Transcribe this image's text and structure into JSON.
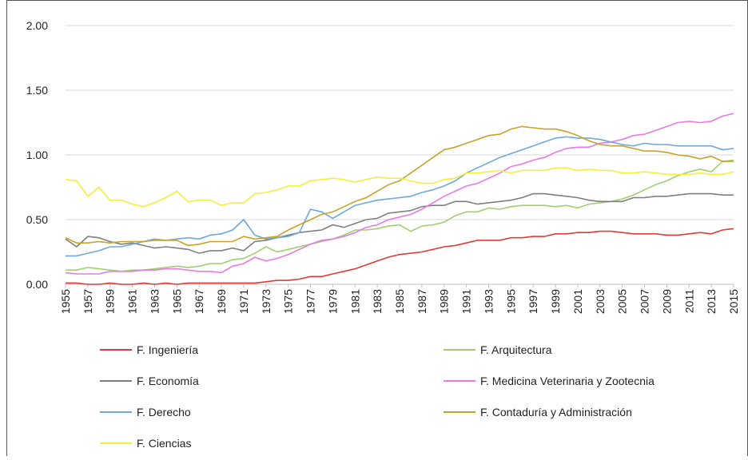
{
  "chart_data": {
    "type": "line",
    "x": [
      1955,
      1956,
      1957,
      1958,
      1959,
      1960,
      1961,
      1962,
      1963,
      1964,
      1965,
      1966,
      1967,
      1968,
      1969,
      1970,
      1971,
      1972,
      1973,
      1974,
      1975,
      1976,
      1977,
      1978,
      1979,
      1980,
      1981,
      1982,
      1983,
      1984,
      1985,
      1986,
      1987,
      1988,
      1989,
      1990,
      1991,
      1992,
      1993,
      1994,
      1995,
      1996,
      1997,
      1998,
      1999,
      2000,
      2001,
      2002,
      2003,
      2004,
      2005,
      2006,
      2007,
      2008,
      2009,
      2010,
      2011,
      2012,
      2013,
      2014,
      2015
    ],
    "xlim": [
      1955,
      2015
    ],
    "xticks": [
      1955,
      1957,
      1959,
      1961,
      1963,
      1965,
      1967,
      1969,
      1971,
      1973,
      1975,
      1977,
      1979,
      1981,
      1983,
      1985,
      1987,
      1989,
      1991,
      1993,
      1995,
      1997,
      1999,
      2001,
      2003,
      2005,
      2007,
      2009,
      2011,
      2013,
      2015
    ],
    "ylim": [
      0,
      2
    ],
    "yticks": [
      {
        "value": 0,
        "label": "0.00"
      },
      {
        "value": 0.5,
        "label": "0.50"
      },
      {
        "value": 1,
        "label": "1.00"
      },
      {
        "value": 1.5,
        "label": "1.50"
      },
      {
        "value": 2,
        "label": "2.00"
      }
    ],
    "grid": true,
    "legend": "bottom",
    "series": [
      {
        "name": "F. Ingeniería",
        "color": "#e03a3a",
        "values": [
          0.01,
          0.01,
          0,
          0,
          0.01,
          0,
          0,
          0.01,
          0,
          0.01,
          0,
          0.01,
          0.01,
          0.01,
          0.01,
          0.01,
          0.01,
          0.01,
          0.02,
          0.03,
          0.03,
          0.04,
          0.06,
          0.06,
          0.08,
          0.1,
          0.12,
          0.15,
          0.18,
          0.21,
          0.23,
          0.24,
          0.25,
          0.27,
          0.29,
          0.3,
          0.32,
          0.34,
          0.34,
          0.34,
          0.36,
          0.36,
          0.37,
          0.37,
          0.39,
          0.39,
          0.4,
          0.4,
          0.41,
          0.41,
          0.4,
          0.39,
          0.39,
          0.39,
          0.38,
          0.38,
          0.39,
          0.4,
          0.39,
          0.42,
          0.43
        ]
      },
      {
        "name": "F. Arquitectura",
        "color": "#9fd06f",
        "values": [
          0.11,
          0.11,
          0.13,
          0.12,
          0.11,
          0.1,
          0.11,
          0.11,
          0.12,
          0.13,
          0.14,
          0.13,
          0.14,
          0.16,
          0.16,
          0.19,
          0.2,
          0.24,
          0.29,
          0.25,
          0.27,
          0.29,
          0.31,
          0.33,
          0.35,
          0.38,
          0.42,
          0.42,
          0.43,
          0.45,
          0.46,
          0.41,
          0.45,
          0.46,
          0.48,
          0.53,
          0.56,
          0.56,
          0.59,
          0.58,
          0.6,
          0.61,
          0.61,
          0.61,
          0.6,
          0.61,
          0.59,
          0.62,
          0.63,
          0.64,
          0.66,
          0.69,
          0.73,
          0.77,
          0.8,
          0.84,
          0.87,
          0.89,
          0.87,
          0.95,
          0.96
        ]
      },
      {
        "name": "F. Economía",
        "color": "#7f7f7f",
        "values": [
          0.35,
          0.29,
          0.37,
          0.36,
          0.33,
          0.31,
          0.32,
          0.3,
          0.28,
          0.29,
          0.28,
          0.27,
          0.24,
          0.26,
          0.26,
          0.28,
          0.26,
          0.33,
          0.34,
          0.36,
          0.38,
          0.4,
          0.41,
          0.42,
          0.46,
          0.44,
          0.47,
          0.5,
          0.51,
          0.55,
          0.56,
          0.57,
          0.6,
          0.61,
          0.61,
          0.64,
          0.64,
          0.62,
          0.63,
          0.64,
          0.65,
          0.67,
          0.7,
          0.7,
          0.69,
          0.68,
          0.67,
          0.65,
          0.64,
          0.64,
          0.64,
          0.67,
          0.67,
          0.68,
          0.68,
          0.69,
          0.7,
          0.7,
          0.7,
          0.69,
          0.69
        ]
      },
      {
        "name": "F. Medicina Veterinaria y Zootecnia",
        "color": "#e87ae8",
        "values": [
          0.09,
          0.08,
          0.08,
          0.08,
          0.1,
          0.1,
          0.1,
          0.11,
          0.11,
          0.12,
          0.12,
          0.11,
          0.1,
          0.1,
          0.09,
          0.14,
          0.16,
          0.21,
          0.18,
          0.2,
          0.23,
          0.27,
          0.31,
          0.34,
          0.35,
          0.37,
          0.4,
          0.44,
          0.46,
          0.5,
          0.52,
          0.54,
          0.58,
          0.63,
          0.68,
          0.72,
          0.76,
          0.78,
          0.82,
          0.86,
          0.91,
          0.93,
          0.96,
          0.98,
          1.02,
          1.05,
          1.06,
          1.06,
          1.09,
          1.1,
          1.12,
          1.15,
          1.16,
          1.19,
          1.22,
          1.25,
          1.26,
          1.25,
          1.26,
          1.3,
          1.32
        ]
      },
      {
        "name": "F. Derecho",
        "color": "#6fa8dc",
        "values": [
          0.22,
          0.22,
          0.24,
          0.26,
          0.29,
          0.29,
          0.31,
          0.33,
          0.35,
          0.34,
          0.35,
          0.36,
          0.35,
          0.38,
          0.39,
          0.42,
          0.5,
          0.38,
          0.35,
          0.36,
          0.37,
          0.4,
          0.58,
          0.56,
          0.51,
          0.56,
          0.61,
          0.63,
          0.65,
          0.66,
          0.67,
          0.68,
          0.71,
          0.73,
          0.76,
          0.8,
          0.86,
          0.9,
          0.94,
          0.98,
          1.01,
          1.04,
          1.07,
          1.1,
          1.13,
          1.14,
          1.13,
          1.13,
          1.12,
          1.1,
          1.08,
          1.07,
          1.09,
          1.08,
          1.08,
          1.07,
          1.07,
          1.07,
          1.07,
          1.04,
          1.05
        ]
      },
      {
        "name": "F. Contaduría y Administración",
        "color": "#c9a227",
        "values": [
          0.36,
          0.32,
          0.32,
          0.33,
          0.32,
          0.33,
          0.33,
          0.33,
          0.34,
          0.34,
          0.34,
          0.3,
          0.31,
          0.33,
          0.33,
          0.33,
          0.37,
          0.35,
          0.36,
          0.37,
          0.42,
          0.46,
          0.5,
          0.54,
          0.56,
          0.6,
          0.64,
          0.67,
          0.72,
          0.77,
          0.8,
          0.86,
          0.92,
          0.98,
          1.04,
          1.06,
          1.09,
          1.12,
          1.15,
          1.16,
          1.2,
          1.22,
          1.21,
          1.2,
          1.2,
          1.18,
          1.15,
          1.11,
          1.08,
          1.07,
          1.07,
          1.05,
          1.03,
          1.03,
          1.02,
          1.0,
          0.99,
          0.97,
          0.99,
          0.95,
          0.95
        ]
      },
      {
        "name": "F. Ciencias",
        "color": "#f4ef3a",
        "values": [
          0.81,
          0.8,
          0.68,
          0.75,
          0.65,
          0.65,
          0.62,
          0.6,
          0.63,
          0.67,
          0.72,
          0.64,
          0.65,
          0.65,
          0.61,
          0.63,
          0.63,
          0.7,
          0.71,
          0.73,
          0.76,
          0.76,
          0.8,
          0.81,
          0.82,
          0.81,
          0.79,
          0.81,
          0.83,
          0.82,
          0.82,
          0.8,
          0.78,
          0.78,
          0.81,
          0.82,
          0.86,
          0.86,
          0.87,
          0.88,
          0.86,
          0.88,
          0.88,
          0.88,
          0.9,
          0.9,
          0.88,
          0.89,
          0.88,
          0.88,
          0.86,
          0.86,
          0.87,
          0.86,
          0.85,
          0.85,
          0.85,
          0.86,
          0.85,
          0.85,
          0.87
        ]
      }
    ]
  }
}
